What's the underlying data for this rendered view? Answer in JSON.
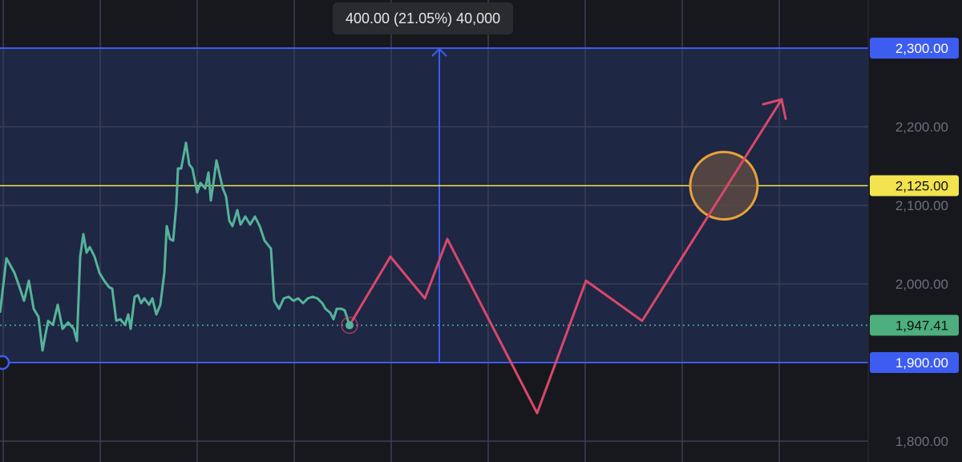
{
  "tooltip": {
    "text": "400.00 (21.05%) 40,000"
  },
  "colors": {
    "background": "#17181d",
    "range_fill": "#1e2744",
    "range_border": "#3d5cf0",
    "grid": "#3a3f55",
    "price_line": "#56b39a",
    "projection": "#d9486a",
    "level_line": "#f2e34f",
    "circle_stroke": "#e8a23a",
    "circle_fill": "#5a4a42"
  },
  "chart_data": {
    "type": "line",
    "title": "",
    "xlabel": "",
    "ylabel": "",
    "ylim": [
      1780,
      2330
    ],
    "grid": true,
    "y_ticks": [
      "2,200.00",
      "2,100.00",
      "2,000.00",
      "1,800.00"
    ],
    "y_tick_values": [
      2200,
      2100,
      2000,
      1800
    ],
    "series": [
      {
        "kind": "price",
        "values": [
          1963.3,
          2032.7,
          2014.3,
          1993.9,
          1978.6,
          2004.1,
          1968.4,
          1958.2,
          1915.3,
          1953.1,
          1948.0,
          1973.5,
          1942.9,
          1951.0,
          1942.9,
          1927.6,
          2034.7,
          2063.3,
          2039.8,
          2046.9,
          2034.7,
          2014.3,
          2004.1,
          1995.9,
          1993.9,
          1953.1,
          1955.1,
          1948.0,
          1961.2,
          1942.9,
          1983.7,
          1985.7,
          1975.5,
          1981.6,
          1973.5,
          1981.6,
          1961.2,
          1973.5,
          2014.3,
          2073.5,
          2057.1,
          2055.1,
          2101.0,
          2146.9,
          2146.9,
          2179.6,
          2152.0,
          2146.9,
          2116.3,
          2128.6,
          2121.4,
          2141.8,
          2106.1,
          2126.5,
          2157.1,
          2138.8,
          2121.4,
          2111.2,
          2080.6,
          2073.5,
          2093.9,
          2075.5,
          2085.7,
          2075.5,
          2085.7,
          2073.5,
          2055.1,
          2044.9,
          1978.6,
          1968.4,
          1981.6,
          1983.7,
          1978.6,
          1981.6,
          1975.5,
          1981.6,
          1983.7,
          1981.6,
          1975.5,
          1968.4,
          1963.3,
          1955.1,
          1968.4,
          1968.4,
          1966.3,
          1947.41
        ]
      },
      {
        "kind": "projection-arrow",
        "values": [
          1947.41,
          2034.7,
          1981.6,
          2057.1,
          1835.7,
          2004.1,
          1953.1,
          2234.7
        ]
      }
    ],
    "range": {
      "top": 2300,
      "bottom": 1900,
      "top_label": "2,300.00",
      "bottom_label": "1,900.00"
    },
    "level": {
      "value": 2125,
      "label": "2,125.00"
    },
    "last_price": {
      "value": 1947.41,
      "label": "1,947.41"
    },
    "target_circle": {
      "price": 2125
    }
  }
}
